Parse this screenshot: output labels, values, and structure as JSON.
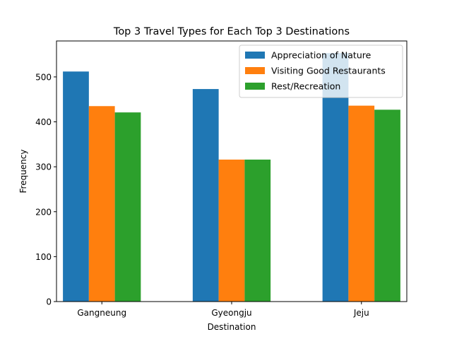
{
  "chart_data": {
    "type": "bar",
    "title": "Top 3 Travel Types for Each Top 3 Destinations",
    "xlabel": "Destination",
    "ylabel": "Frequency",
    "categories": [
      "Gangneung",
      "Gyeongju",
      "Jeju"
    ],
    "series": [
      {
        "name": "Appreciation of Nature",
        "values": [
          512,
          473,
          553
        ],
        "color": "#1f77b4"
      },
      {
        "name": "Visiting Good Restaurants",
        "values": [
          435,
          316,
          436
        ],
        "color": "#ff7f0e"
      },
      {
        "name": "Rest/Recreation",
        "values": [
          421,
          316,
          427
        ],
        "color": "#2ca02c"
      }
    ],
    "ylim": [
      0,
      580
    ],
    "yticks": [
      0,
      100,
      200,
      300,
      400,
      500
    ],
    "grid": false,
    "legend_position": "top-right"
  }
}
